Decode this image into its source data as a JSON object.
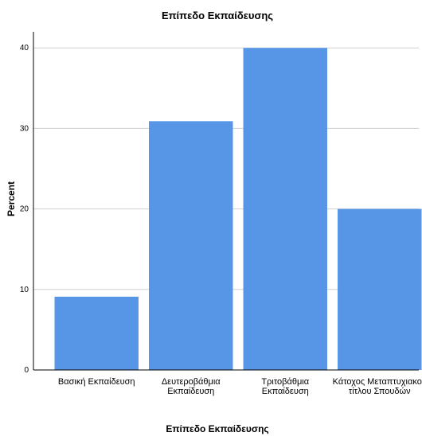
{
  "chart_data": {
    "type": "bar",
    "title": "Επίπεδο Εκπαίδευσης",
    "xlabel": "Επίπεδο Εκπαίδευσης",
    "ylabel": "Percent",
    "categories": [
      [
        "Βασική Εκπαίδευση"
      ],
      [
        "Δευτεροβάθμια",
        "Εκπαίδευση"
      ],
      [
        "Τριτοβάθμια",
        "Εκπαίδευση"
      ],
      [
        "Κάτοχος Μεταπτυχιακού",
        "τίτλου Σπουδών"
      ]
    ],
    "values": [
      9.1,
      30.9,
      40.0,
      20.0
    ],
    "ylim": [
      0,
      42
    ],
    "yticks": [
      0,
      10,
      20,
      30,
      40
    ],
    "grid": true,
    "colors": {
      "bar": "#5796e6",
      "grid": "#d0d0d0"
    }
  }
}
